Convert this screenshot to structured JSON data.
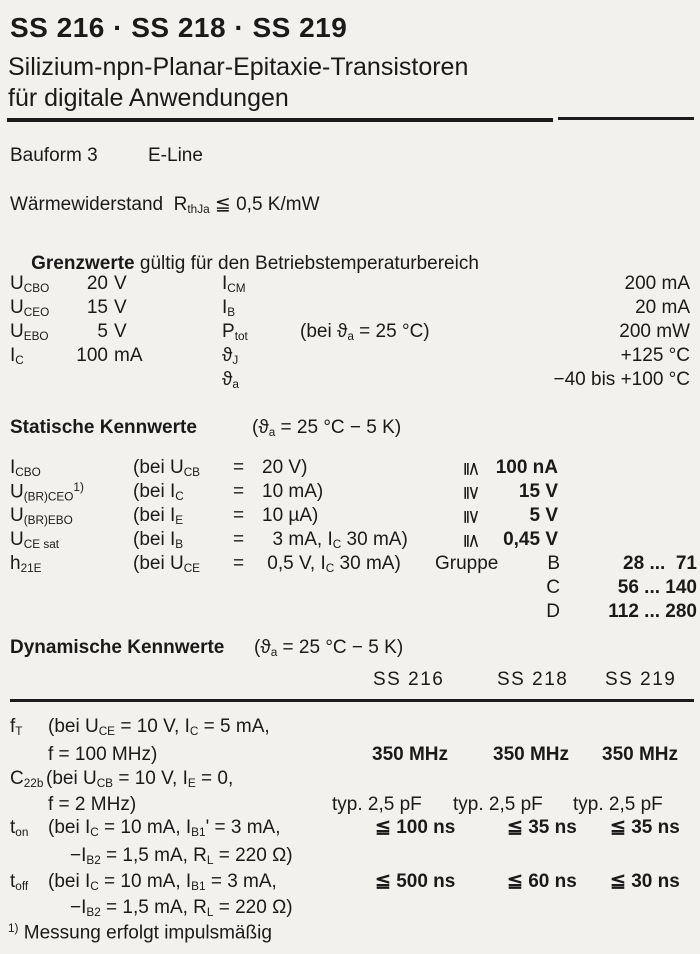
{
  "page": {
    "background": "#f2f1ed",
    "ink": "#1a1a1a"
  },
  "header": {
    "title": "SS 216 · SS 218 · SS 219",
    "subtitle_line1": "Silizium-npn-Planar-Epitaxie-Transistoren",
    "subtitle_line2": "für digitale Anwendungen"
  },
  "bauform": {
    "label": "Bauform 3",
    "value": "E-Line"
  },
  "thermal": {
    "text": "Wärmewiderstand  R_{thJa} ≦ 0,5 K/mW"
  },
  "grenzwerte": {
    "heading_bold": "Grenzwerte",
    "heading_rest": " gültig für den Betriebstemperaturbereich",
    "rows": [
      {
        "sym": "U_{CBO}",
        "num": "20",
        "unit": "V",
        "sym2": "I_{CM}",
        "cond": "",
        "val": "200 mA"
      },
      {
        "sym": "U_{CEO}",
        "num": "15",
        "unit": "V",
        "sym2": "I_{B}",
        "cond": "",
        "val": "20 mA"
      },
      {
        "sym": "U_{EBO}",
        "num": "5",
        "unit": "V",
        "sym2": "P_{tot}",
        "cond": "(bei ϑ_{a} = 25 °C)",
        "val": "200 mW"
      },
      {
        "sym": "I_{C}",
        "num": "100",
        "unit": "mA",
        "sym2": "ϑ_{J}",
        "cond": "",
        "val": "+125 °C"
      },
      {
        "sym": "",
        "num": "",
        "unit": "",
        "sym2": "ϑ_{a}",
        "cond": "",
        "val": "−40 bis +100 °C"
      }
    ]
  },
  "statische": {
    "heading_bold": "Statische Kennwerte",
    "heading_cond": "(ϑ_{a} = 25 °C − 5 K)",
    "rows": [
      {
        "sym": "I_{CBO}",
        "cond_pre": "(bei U_{CB}",
        "eq": "=",
        "cond_val": "20 V)",
        "rel": "≦",
        "val": "100 nA"
      },
      {
        "sym": "U_{(BR)CEO}^{1)}",
        "cond_pre": "(bei I_{C}",
        "eq": "=",
        "cond_val": "10 mA)",
        "rel": "≧",
        "val": "15 V"
      },
      {
        "sym": "U_{(BR)EBO}",
        "cond_pre": "(bei I_{E}",
        "eq": "=",
        "cond_val": "10 µA)",
        "rel": "≧",
        "val": "5 V"
      },
      {
        "sym": "U_{CE sat}",
        "cond_pre": "(bei I_{B}",
        "eq": "=",
        "cond_val": "  3 mA, I_{C} 30 mA)",
        "rel": "≦",
        "val": "0,45 V"
      },
      {
        "sym": "h_{21E}",
        "cond_pre": "(bei U_{CE}",
        "eq": "=",
        "cond_val": " 0,5 V, I_{C} 30 mA)",
        "group_label": "Gruppe",
        "group_letter": "B",
        "range": "28 ...  71"
      }
    ],
    "extra_groups": [
      {
        "letter": "C",
        "range": "56 ... 140"
      },
      {
        "letter": "D",
        "range": "112 ... 280"
      }
    ]
  },
  "dynamische": {
    "heading_bold": "Dynamische Kennwerte",
    "heading_cond": "(ϑ_{a} = 25 °C − 5 K)",
    "columns": [
      "SS 216",
      "SS 218",
      "SS 219"
    ],
    "rows": [
      {
        "sym": "f_{T}",
        "cond_line1": "(bei U_{CE} = 10 V, I_{C} = 5 mA,",
        "cond_line2": "f = 100 MHz)",
        "v1": "350 MHz",
        "v2": "350 MHz",
        "v3": "350 MHz"
      },
      {
        "sym": "C_{22b}",
        "cond_line1": "(bei U_{CB} = 10 V, I_{E} = 0,",
        "cond_line2": "f = 2 MHz)",
        "v1": "typ. 2,5 pF",
        "v2": "typ. 2,5 pF",
        "v3": "typ. 2,5 pF"
      },
      {
        "sym": "t_{on}",
        "cond_line1": "(bei I_{C} = 10 mA, I_{B1}' = 3 mA,",
        "cond_line2": "−I_{B2} = 1,5 mA, R_{L} = 220 Ω)",
        "v1": "≦ 100 ns",
        "v2": "≦ 35 ns",
        "v3": "≦ 35 ns"
      },
      {
        "sym": "t_{off}",
        "cond_line1": "(bei I_{C} = 10 mA, I_{B1} = 3 mA,",
        "cond_line2": "−I_{B2} = 1,5 mA, R_{L} = 220 Ω)",
        "v1": "≦ 500 ns",
        "v2": "≦ 60 ns",
        "v3": "≦ 30 ns"
      }
    ]
  },
  "footnote": {
    "text": "^{1)} Messung erfolgt impulsmäßig"
  }
}
